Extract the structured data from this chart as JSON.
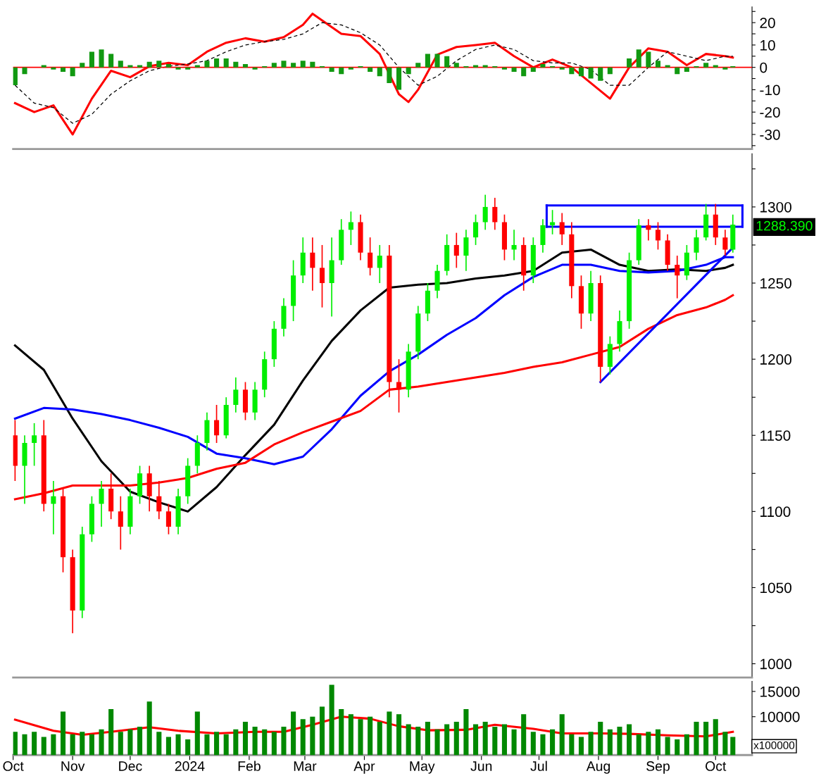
{
  "chart_data": [
    {
      "type": "bar",
      "x": [
        "2023-10-02",
        "2023-10-07",
        "2023-10-12",
        "2023-10-17",
        "2023-10-22",
        "2023-10-27",
        "2023-11-01",
        "2023-11-06",
        "2023-11-11",
        "2023-11-16",
        "2023-11-21",
        "2023-11-26",
        "2023-12-01",
        "2023-12-06",
        "2023-12-11",
        "2023-12-16",
        "2023-12-21",
        "2023-12-26",
        "2023-12-31",
        "2024-01-05",
        "2024-01-10",
        "2024-01-15",
        "2024-01-20",
        "2024-01-25",
        "2024-01-30",
        "2024-02-04",
        "2024-02-09",
        "2024-02-14",
        "2024-02-19",
        "2024-02-24",
        "2024-02-29",
        "2024-03-05",
        "2024-03-10",
        "2024-03-15",
        "2024-03-20",
        "2024-03-25",
        "2024-03-30",
        "2024-04-04",
        "2024-04-09",
        "2024-04-14",
        "2024-04-19",
        "2024-04-24",
        "2024-04-29",
        "2024-05-04",
        "2024-05-09",
        "2024-05-14",
        "2024-05-19",
        "2024-05-24",
        "2024-05-29",
        "2024-06-03",
        "2024-06-08",
        "2024-06-13",
        "2024-06-18",
        "2024-06-23",
        "2024-06-28",
        "2024-07-03",
        "2024-07-08",
        "2024-07-13",
        "2024-07-18",
        "2024-07-23",
        "2024-07-28",
        "2024-08-02",
        "2024-08-07",
        "2024-08-12",
        "2024-08-17",
        "2024-08-22",
        "2024-08-27",
        "2024-09-01",
        "2024-09-06",
        "2024-09-11",
        "2024-09-16",
        "2024-09-21",
        "2024-09-26",
        "2024-10-01",
        "2024-10-06",
        "2024-10-10"
      ],
      "series": [
        {
          "type": "bar",
          "color": "#119911",
          "values": [
            -8,
            -3,
            0,
            1,
            -1,
            -2,
            -4,
            2,
            7,
            8,
            6,
            3,
            1,
            1,
            2.5,
            3,
            1.5,
            -1,
            -1,
            1,
            3,
            4,
            4,
            2.5,
            1.5,
            -1,
            0.5,
            2,
            3,
            2,
            3,
            2.5,
            0.5,
            -2,
            -3,
            -1,
            0.5,
            -2,
            -4,
            -7,
            -10,
            -3,
            2,
            6,
            6,
            5,
            2,
            0.5,
            1,
            1,
            0.5,
            -1,
            -2,
            -4,
            -2,
            1.5,
            0.5,
            -1,
            -3,
            -4,
            -5,
            -6,
            -3,
            0,
            4,
            8,
            7,
            3,
            1,
            -3,
            -2,
            0.5,
            2,
            1,
            -1,
            0.5
          ]
        },
        {
          "type": "line",
          "color": "#ff0000",
          "x": [
            "2023-10-02",
            "2023-10-12",
            "2023-10-22",
            "2023-11-01",
            "2023-11-11",
            "2023-11-21",
            "2023-12-01",
            "2023-12-11",
            "2023-12-21",
            "2023-12-31",
            "2024-01-10",
            "2024-01-20",
            "2024-01-30",
            "2024-02-09",
            "2024-02-19",
            "2024-02-29",
            "2024-03-05",
            "2024-03-10",
            "2024-03-20",
            "2024-03-30",
            "2024-04-09",
            "2024-04-19",
            "2024-04-24",
            "2024-04-29",
            "2024-05-09",
            "2024-05-19",
            "2024-05-29",
            "2024-06-08",
            "2024-06-18",
            "2024-06-28",
            "2024-07-08",
            "2024-07-18",
            "2024-07-28",
            "2024-08-07",
            "2024-08-17",
            "2024-08-27",
            "2024-09-06",
            "2024-09-16",
            "2024-09-26",
            "2024-10-06",
            "2024-10-10"
          ],
          "values": [
            -16,
            -20,
            -17,
            -30,
            -14,
            -1.5,
            -4.4,
            0.5,
            2,
            1,
            7,
            11,
            13,
            11.5,
            13.5,
            19,
            24,
            21,
            15,
            14,
            6,
            -12,
            -15.5,
            -10,
            5.7,
            9.1,
            10,
            11,
            5,
            0,
            3.5,
            0,
            -7,
            -14,
            0,
            8.5,
            7,
            1,
            6,
            5,
            4.4
          ]
        },
        {
          "type": "line",
          "color": "#000000",
          "line_style": "dashed",
          "x": [
            "2023-10-02",
            "2023-10-12",
            "2023-10-22",
            "2023-11-01",
            "2023-11-11",
            "2023-11-21",
            "2023-12-01",
            "2023-12-11",
            "2023-12-21",
            "2023-12-31",
            "2024-01-10",
            "2024-01-20",
            "2024-01-30",
            "2024-02-09",
            "2024-02-19",
            "2024-02-29",
            "2024-03-10",
            "2024-03-20",
            "2024-03-30",
            "2024-04-09",
            "2024-04-19",
            "2024-04-29",
            "2024-05-09",
            "2024-05-19",
            "2024-05-29",
            "2024-06-08",
            "2024-06-18",
            "2024-06-28",
            "2024-07-08",
            "2024-07-18",
            "2024-07-28",
            "2024-08-07",
            "2024-08-17",
            "2024-08-27",
            "2024-09-06",
            "2024-09-16",
            "2024-09-26",
            "2024-10-06",
            "2024-10-10"
          ],
          "values": [
            -8,
            -16,
            -18,
            -25,
            -21,
            -12,
            -6,
            -1.5,
            0.5,
            1.5,
            3,
            7,
            10,
            11.5,
            12.5,
            15,
            20,
            19,
            15.5,
            10,
            0,
            -8,
            -4,
            3,
            8,
            10,
            8,
            3,
            2,
            2,
            -1,
            -8,
            -8,
            0,
            7,
            5,
            3,
            5,
            5
          ]
        }
      ],
      "ref_lines": [
        {
          "axis": "y",
          "value": 0,
          "color": "#ff0000"
        }
      ],
      "xlim": [
        "2023-10-01",
        "2024-10-20"
      ],
      "ylim": [
        -36.5,
        27
      ],
      "yticks": [
        {
          "value": -35,
          "label": null
        },
        -30,
        {
          "value": -25,
          "label": null
        },
        -20,
        {
          "value": -15,
          "label": null
        },
        -10,
        {
          "value": -5,
          "label": null
        },
        0,
        {
          "value": 5,
          "label": null
        },
        10,
        {
          "value": 15,
          "label": null
        },
        20,
        {
          "value": 25,
          "label": null
        }
      ],
      "tick_labels": "y",
      "grid": false
    },
    {
      "type": "candlestick",
      "series": [
        {
          "type": "candlestick",
          "color": "#00ee00",
          "x": [
            "2023-10-07",
            "2023-10-12",
            "2023-10-22",
            "2023-11-06",
            "2023-11-11",
            "2023-11-16",
            "2023-12-01",
            "2023-12-06",
            "2023-12-26",
            "2023-12-31",
            "2024-01-05",
            "2024-01-10",
            "2024-01-20",
            "2024-01-25",
            "2024-02-04",
            "2024-02-09",
            "2024-02-14",
            "2024-02-19",
            "2024-02-24",
            "2024-02-29",
            "2024-03-15",
            "2024-03-20",
            "2024-03-25",
            "2024-04-09",
            "2024-04-24",
            "2024-04-29",
            "2024-05-04",
            "2024-05-09",
            "2024-05-14",
            "2024-05-24",
            "2024-05-29",
            "2024-06-03",
            "2024-06-18",
            "2024-06-28",
            "2024-07-03",
            "2024-07-08",
            "2024-07-28",
            "2024-08-07",
            "2024-08-12",
            "2024-08-17",
            "2024-08-22",
            "2024-09-16",
            "2024-09-21",
            "2024-09-26",
            "2024-10-10"
          ],
          "ohlc": [
            [
              1130,
              1150,
              1105,
              1145
            ],
            [
              1145,
              1158,
              1130,
              1150
            ],
            [
              1105,
              1120,
              1085,
              1110
            ],
            [
              1035,
              1090,
              1030,
              1085
            ],
            [
              1085,
              1110,
              1080,
              1105
            ],
            [
              1105,
              1120,
              1090,
              1115
            ],
            [
              1090,
              1115,
              1085,
              1110
            ],
            [
              1110,
              1130,
              1105,
              1125
            ],
            [
              1090,
              1115,
              1085,
              1110
            ],
            [
              1110,
              1135,
              1105,
              1130
            ],
            [
              1130,
              1150,
              1125,
              1145
            ],
            [
              1145,
              1165,
              1140,
              1160
            ],
            [
              1150,
              1175,
              1148,
              1170
            ],
            [
              1170,
              1188,
              1165,
              1180
            ],
            [
              1165,
              1185,
              1160,
              1180
            ],
            [
              1180,
              1205,
              1175,
              1200
            ],
            [
              1200,
              1225,
              1195,
              1220
            ],
            [
              1220,
              1240,
              1215,
              1235
            ],
            [
              1235,
              1265,
              1225,
              1255
            ],
            [
              1255,
              1280,
              1250,
              1270
            ],
            [
              1250,
              1280,
              1228,
              1265
            ],
            [
              1265,
              1292,
              1262,
              1285
            ],
            [
              1285,
              1297,
              1275,
              1290
            ],
            [
              1260,
              1275,
              1250,
              1268
            ],
            [
              1180,
              1210,
              1175,
              1205
            ],
            [
              1205,
              1235,
              1200,
              1230
            ],
            [
              1230,
              1250,
              1225,
              1245
            ],
            [
              1245,
              1262,
              1240,
              1258
            ],
            [
              1258,
              1282,
              1255,
              1275
            ],
            [
              1268,
              1285,
              1258,
              1280
            ],
            [
              1280,
              1295,
              1275,
              1290
            ],
            [
              1290,
              1308,
              1285,
              1300
            ],
            [
              1272,
              1285,
              1265,
              1275
            ],
            [
              1255,
              1280,
              1250,
              1275
            ],
            [
              1275,
              1292,
              1270,
              1288
            ],
            [
              1288,
              1298,
              1282,
              1290
            ],
            [
              1230,
              1258,
              1225,
              1250
            ],
            [
              1195,
              1215,
              1190,
              1210
            ],
            [
              1210,
              1232,
              1205,
              1225
            ],
            [
              1225,
              1270,
              1220,
              1265
            ],
            [
              1265,
              1292,
              1262,
              1288
            ],
            [
              1255,
              1275,
              1252,
              1270
            ],
            [
              1270,
              1285,
              1265,
              1280
            ],
            [
              1280,
              1302,
              1278,
              1295
            ],
            [
              1272,
              1295,
              1270,
              1288.39
            ]
          ]
        },
        {
          "type": "candlestick",
          "color": "#ff0000",
          "x": [
            "2023-10-02",
            "2023-10-17",
            "2023-10-27",
            "2023-11-01",
            "2023-11-21",
            "2023-11-26",
            "2023-12-11",
            "2023-12-16",
            "2023-12-21",
            "2024-01-15",
            "2024-01-30",
            "2024-03-05",
            "2024-03-10",
            "2024-03-30",
            "2024-04-04",
            "2024-04-14",
            "2024-04-19",
            "2024-05-19",
            "2024-06-08",
            "2024-06-13",
            "2024-06-23",
            "2024-07-13",
            "2024-07-18",
            "2024-07-23",
            "2024-08-02",
            "2024-08-27",
            "2024-09-01",
            "2024-09-06",
            "2024-09-11",
            "2024-10-01",
            "2024-10-06"
          ],
          "ohlc": [
            [
              1150,
              1160,
              1120,
              1130
            ],
            [
              1150,
              1160,
              1100,
              1105
            ],
            [
              1110,
              1115,
              1060,
              1070
            ],
            [
              1070,
              1075,
              1020,
              1035
            ],
            [
              1115,
              1125,
              1095,
              1100
            ],
            [
              1100,
              1110,
              1075,
              1090
            ],
            [
              1125,
              1130,
              1100,
              1110
            ],
            [
              1110,
              1120,
              1095,
              1100
            ],
            [
              1100,
              1105,
              1085,
              1090
            ],
            [
              1160,
              1170,
              1145,
              1150
            ],
            [
              1180,
              1185,
              1160,
              1165
            ],
            [
              1270,
              1280,
              1245,
              1260
            ],
            [
              1260,
              1275,
              1234,
              1250
            ],
            [
              1290,
              1295,
              1265,
              1270
            ],
            [
              1270,
              1280,
              1255,
              1260
            ],
            [
              1268,
              1275,
              1175,
              1185
            ],
            [
              1185,
              1200,
              1165,
              1180
            ],
            [
              1275,
              1283,
              1260,
              1268
            ],
            [
              1300,
              1306,
              1285,
              1290
            ],
            [
              1290,
              1295,
              1265,
              1272
            ],
            [
              1275,
              1280,
              1245,
              1255
            ],
            [
              1290,
              1296,
              1275,
              1282
            ],
            [
              1282,
              1290,
              1240,
              1248
            ],
            [
              1248,
              1255,
              1220,
              1230
            ],
            [
              1250,
              1255,
              1185,
              1195
            ],
            [
              1288,
              1292,
              1278,
              1285
            ],
            [
              1285,
              1290,
              1272,
              1278
            ],
            [
              1278,
              1282,
              1258,
              1262
            ],
            [
              1262,
              1268,
              1240,
              1255
            ],
            [
              1295,
              1302,
              1275,
              1280
            ],
            [
              1280,
              1285,
              1268,
              1272
            ]
          ]
        },
        {
          "type": "line",
          "color": "#000000",
          "x": [
            "2023-10-02",
            "2023-10-17",
            "2023-11-01",
            "2023-11-16",
            "2023-12-01",
            "2023-12-16",
            "2023-12-31",
            "2024-01-15",
            "2024-01-30",
            "2024-02-14",
            "2024-02-29",
            "2024-03-15",
            "2024-03-30",
            "2024-04-14",
            "2024-04-29",
            "2024-05-14",
            "2024-05-29",
            "2024-06-13",
            "2024-06-28",
            "2024-07-13",
            "2024-07-28",
            "2024-08-12",
            "2024-08-27",
            "2024-09-11",
            "2024-09-26",
            "2024-10-06",
            "2024-10-10"
          ],
          "values": [
            1209,
            1193,
            1161,
            1133,
            1113,
            1106,
            1100,
            1116,
            1137,
            1157,
            1186,
            1212,
            1232,
            1247,
            1249,
            1250,
            1253,
            1255,
            1258,
            1270,
            1272,
            1262,
            1258,
            1259,
            1258,
            1260,
            1262
          ]
        },
        {
          "type": "line",
          "color": "#0000ff",
          "x": [
            "2023-10-02",
            "2023-10-17",
            "2023-11-01",
            "2023-11-16",
            "2023-12-01",
            "2023-12-16",
            "2023-12-31",
            "2024-01-15",
            "2024-01-30",
            "2024-02-14",
            "2024-02-29",
            "2024-03-15",
            "2024-03-30",
            "2024-04-14",
            "2024-04-29",
            "2024-05-14",
            "2024-05-29",
            "2024-06-13",
            "2024-06-28",
            "2024-07-13",
            "2024-07-28",
            "2024-08-12",
            "2024-08-27",
            "2024-09-11",
            "2024-09-26",
            "2024-10-06",
            "2024-10-10"
          ],
          "values": [
            1161,
            1168,
            1167,
            1164,
            1160,
            1155,
            1149,
            1138,
            1135,
            1131,
            1136,
            1154,
            1176,
            1192,
            1203,
            1216,
            1227,
            1242,
            1254,
            1262,
            1262,
            1258,
            1257,
            1258,
            1262,
            1267,
            1267
          ]
        },
        {
          "type": "line",
          "color": "#ff0000",
          "x": [
            "2023-10-02",
            "2023-10-17",
            "2023-11-01",
            "2023-11-16",
            "2023-12-01",
            "2023-12-16",
            "2023-12-31",
            "2024-01-15",
            "2024-01-30",
            "2024-02-14",
            "2024-02-29",
            "2024-03-15",
            "2024-03-30",
            "2024-04-14",
            "2024-04-29",
            "2024-05-14",
            "2024-05-29",
            "2024-06-13",
            "2024-06-28",
            "2024-07-13",
            "2024-07-28",
            "2024-08-12",
            "2024-08-27",
            "2024-09-11",
            "2024-09-26",
            "2024-10-06",
            "2024-10-10"
          ],
          "values": [
            1108,
            1112,
            1117,
            1117,
            1117,
            1119,
            1122,
            1128,
            1132,
            1144,
            1152,
            1159,
            1166,
            1180,
            1182,
            1185,
            1188,
            1191,
            1195,
            1198,
            1203,
            1208,
            1220,
            1229,
            1234,
            1239,
            1242
          ]
        },
        {
          "type": "line",
          "color": "#0000ff",
          "x": [
            "2024-08-02",
            "2024-10-09"
          ],
          "values": [
            1185,
            1272
          ]
        },
        {
          "type": "line",
          "color": "#0000ff",
          "x": [
            "2024-07-05",
            "2024-10-15"
          ],
          "values": [
            1301,
            1301
          ]
        },
        {
          "type": "line",
          "color": "#0000ff",
          "x": [
            "2024-07-05",
            "2024-10-15"
          ],
          "values": [
            1287,
            1287
          ]
        }
      ],
      "annotations": [
        "1288.390"
      ],
      "xlim": [
        "2023-10-01",
        "2024-10-20"
      ],
      "ylim": [
        991,
        1335
      ],
      "yticks": [
        1000,
        {
          "value": 1025,
          "label": null
        },
        1050,
        {
          "value": 1075,
          "label": null
        },
        1100,
        {
          "value": 1125,
          "label": null
        },
        1150,
        {
          "value": 1175,
          "label": null
        },
        1200,
        {
          "value": 1225,
          "label": null
        },
        1250,
        {
          "value": 1275,
          "label": null
        },
        1300,
        {
          "value": 1325,
          "label": null
        }
      ],
      "tick_labels": "y",
      "grid": false
    },
    {
      "type": "bar",
      "x": [
        "2023-10-02",
        "2023-10-07",
        "2023-10-12",
        "2023-10-17",
        "2023-10-22",
        "2023-10-27",
        "2023-11-01",
        "2023-11-06",
        "2023-11-11",
        "2023-11-16",
        "2023-11-21",
        "2023-11-26",
        "2023-12-01",
        "2023-12-06",
        "2023-12-11",
        "2023-12-16",
        "2023-12-21",
        "2023-12-26",
        "2023-12-31",
        "2024-01-05",
        "2024-01-10",
        "2024-01-15",
        "2024-01-20",
        "2024-01-25",
        "2024-01-30",
        "2024-02-04",
        "2024-02-09",
        "2024-02-14",
        "2024-02-19",
        "2024-02-24",
        "2024-02-29",
        "2024-03-05",
        "2024-03-10",
        "2024-03-15",
        "2024-03-20",
        "2024-03-25",
        "2024-03-30",
        "2024-04-04",
        "2024-04-09",
        "2024-04-14",
        "2024-04-19",
        "2024-04-24",
        "2024-04-29",
        "2024-05-04",
        "2024-05-09",
        "2024-05-14",
        "2024-05-19",
        "2024-05-24",
        "2024-05-29",
        "2024-06-03",
        "2024-06-08",
        "2024-06-13",
        "2024-06-18",
        "2024-06-23",
        "2024-06-28",
        "2024-07-03",
        "2024-07-08",
        "2024-07-13",
        "2024-07-18",
        "2024-07-23",
        "2024-07-28",
        "2024-08-02",
        "2024-08-07",
        "2024-08-12",
        "2024-08-17",
        "2024-08-22",
        "2024-08-27",
        "2024-09-01",
        "2024-09-06",
        "2024-09-11",
        "2024-09-16",
        "2024-09-21",
        "2024-09-26",
        "2024-10-01",
        "2024-10-06",
        "2024-10-10"
      ],
      "series": [
        {
          "type": "bar",
          "color": "#008800",
          "values": [
            7000,
            6500,
            7000,
            6000,
            6500,
            11000,
            6500,
            7000,
            6500,
            7500,
            11500,
            7000,
            7500,
            8000,
            13000,
            7000,
            6000,
            6500,
            5500,
            11000,
            6500,
            7000,
            6500,
            7500,
            9000,
            8000,
            7500,
            7000,
            8000,
            11000,
            9500,
            10000,
            12000,
            16300,
            11500,
            10500,
            9500,
            10000,
            9000,
            11000,
            10500,
            8500,
            8000,
            9000,
            7500,
            8500,
            9000,
            11500,
            8500,
            9000,
            8000,
            8500,
            7500,
            10500,
            7000,
            6500,
            7500,
            10500,
            6500,
            6000,
            7000,
            9000,
            7500,
            8000,
            8500,
            6500,
            7000,
            7500,
            6000,
            5500,
            6500,
            9000,
            9000,
            9500,
            7000,
            6000
          ]
        },
        {
          "type": "line",
          "color": "#ff0000",
          "x": [
            "2023-10-02",
            "2023-10-22",
            "2023-11-06",
            "2023-11-21",
            "2023-12-11",
            "2023-12-26",
            "2024-01-15",
            "2024-02-04",
            "2024-02-19",
            "2024-03-05",
            "2024-03-20",
            "2024-04-04",
            "2024-04-19",
            "2024-05-04",
            "2024-05-24",
            "2024-06-08",
            "2024-06-28",
            "2024-07-13",
            "2024-08-02",
            "2024-08-17",
            "2024-09-06",
            "2024-09-26",
            "2024-10-10"
          ],
          "values": [
            9400,
            7200,
            6400,
            7000,
            7900,
            7200,
            6700,
            7000,
            7000,
            8400,
            10000,
            9600,
            8100,
            7300,
            7400,
            8400,
            7600,
            6700,
            6700,
            6600,
            6300,
            6100,
            7000
          ]
        }
      ],
      "annotations": [
        "x100000"
      ],
      "xlim": [
        "2023-10-01",
        "2024-10-20"
      ],
      "ylim": [
        2400,
        17000
      ],
      "yticks": [
        10000,
        15000
      ],
      "xticks": [
        {
          "value": "2023-10-01",
          "label": "Oct"
        },
        {
          "value": "2023-11-01",
          "label": "Nov"
        },
        {
          "value": "2023-12-01",
          "label": "Dec"
        },
        {
          "value": "2024-01-01",
          "label": "2024"
        },
        {
          "value": "2024-02-01",
          "label": "Feb"
        },
        {
          "value": "2024-03-01",
          "label": "Mar"
        },
        {
          "value": "2024-04-01",
          "label": "Apr"
        },
        {
          "value": "2024-05-01",
          "label": "May"
        },
        {
          "value": "2024-06-01",
          "label": "Jun"
        },
        {
          "value": "2024-07-01",
          "label": "Jul"
        },
        {
          "value": "2024-08-01",
          "label": "Aug"
        },
        {
          "value": "2024-09-01",
          "label": "Sep"
        },
        {
          "value": "2024-10-01",
          "label": "Oct"
        }
      ],
      "grid": false
    }
  ]
}
